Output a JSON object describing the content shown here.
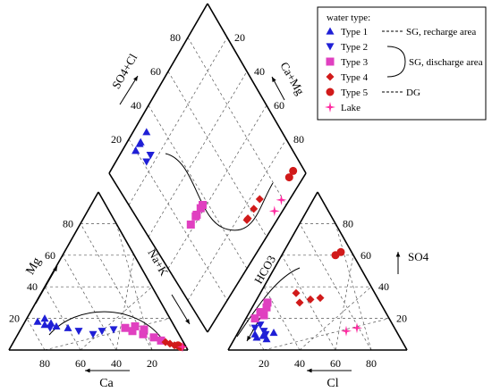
{
  "chart_data": {
    "type": "scatter",
    "title": "",
    "diagram": "Piper",
    "axis_labels": {
      "cation_left": "Mg",
      "cation_bottom": "Ca",
      "cation_diag": "Na+K",
      "anion_left": "HCO3",
      "anion_right": "SO4",
      "anion_bottom": "Cl",
      "diamond_left": "SO4+Cl",
      "diamond_right": "Ca+Mg"
    },
    "ticks": {
      "cation_mg": [
        "20",
        "40",
        "60",
        "80"
      ],
      "cation_ca": [
        "80",
        "60",
        "40",
        "20"
      ],
      "anion_so4": [
        "20",
        "40",
        "60",
        "80"
      ],
      "anion_cl": [
        "20",
        "40",
        "60",
        "80"
      ],
      "diamond_left": [
        "20",
        "40",
        "60",
        "80"
      ],
      "diamond_right": [
        "20",
        "40",
        "60",
        "80"
      ]
    },
    "legend": {
      "title": "water type:",
      "items": [
        {
          "label": "Type 1",
          "note": "SG, recharge area",
          "marker": "triangle-up",
          "color": "#1f1fd6"
        },
        {
          "label": "Type 2",
          "note": "",
          "marker": "triangle-down",
          "color": "#1f1fd6"
        },
        {
          "label": "Type 3",
          "note": "",
          "marker": "square",
          "color": "#e040c0"
        },
        {
          "label": "Type 4",
          "note": "",
          "marker": "diamond",
          "color": "#d11a1a"
        },
        {
          "label": "Type 5",
          "note": "DG",
          "marker": "circle",
          "color": "#d11a1a"
        },
        {
          "label": "Lake",
          "note": "",
          "marker": "star",
          "color": "#ff2aa0"
        }
      ],
      "bracket_note": "SG, discharge area"
    },
    "series": [
      {
        "name": "Type 1",
        "points_cation": [
          [
            75,
            18
          ],
          [
            72,
            16
          ],
          [
            70,
            20
          ],
          [
            68,
            17
          ],
          [
            66,
            15
          ],
          [
            60,
            14
          ]
        ],
        "points_anion": [
          [
            10,
            10
          ],
          [
            12,
            8
          ],
          [
            15,
            9
          ],
          [
            18,
            7
          ],
          [
            20,
            11
          ]
        ]
      },
      {
        "name": "Type 2",
        "points_cation": [
          [
            70,
            14
          ],
          [
            55,
            12
          ],
          [
            48,
            10
          ],
          [
            42,
            12
          ],
          [
            35,
            13
          ]
        ],
        "points_anion": [
          [
            8,
            14
          ],
          [
            10,
            16
          ],
          [
            14,
            12
          ],
          [
            16,
            10
          ]
        ]
      },
      {
        "name": "Type 3",
        "points_cation": [
          [
            28,
            14
          ],
          [
            25,
            12
          ],
          [
            22,
            15
          ],
          [
            20,
            10
          ],
          [
            18,
            13
          ],
          [
            15,
            8
          ],
          [
            12,
            6
          ]
        ],
        "points_anion": [
          [
            5,
            20
          ],
          [
            6,
            24
          ],
          [
            8,
            27
          ],
          [
            7,
            30
          ],
          [
            9,
            22
          ]
        ]
      },
      {
        "name": "Type 4",
        "points_cation": [
          [
            10,
            5
          ],
          [
            8,
            4
          ],
          [
            6,
            3
          ]
        ],
        "points_anion": [
          [
            25,
            30
          ],
          [
            30,
            32
          ],
          [
            35,
            33
          ],
          [
            20,
            36
          ]
        ]
      },
      {
        "name": "Type 5",
        "points_cation": [
          [
            4,
            3
          ],
          [
            3,
            2
          ]
        ],
        "points_anion": [
          [
            30,
            60
          ],
          [
            32,
            62
          ]
        ]
      },
      {
        "name": "Lake",
        "points_cation": [
          [
            2,
            2
          ]
        ],
        "points_anion": [
          [
            60,
            12
          ],
          [
            65,
            14
          ]
        ]
      }
    ]
  }
}
